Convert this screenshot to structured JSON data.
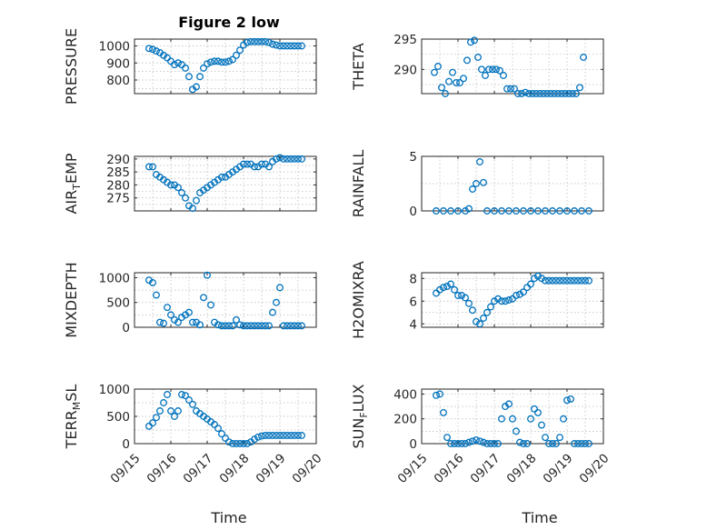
{
  "figure": {
    "title": "Figure 2 low",
    "xlabel": "Time",
    "marker_color": "#0072BD"
  },
  "chart_data": [
    {
      "type": "scatter",
      "ylabel": "PRESSURE",
      "xlim": [
        0,
        5
      ],
      "ylim": [
        720,
        1040
      ],
      "yticks": [
        800,
        900,
        1000
      ],
      "ytick_labels": [
        "800",
        "900",
        "1000"
      ],
      "xticks": [],
      "xtick_labels": [],
      "x": [
        0.4,
        0.5,
        0.6,
        0.7,
        0.8,
        0.9,
        1.0,
        1.1,
        1.2,
        1.3,
        1.4,
        1.5,
        1.6,
        1.7,
        1.8,
        1.9,
        2.0,
        2.1,
        2.2,
        2.3,
        2.4,
        2.5,
        2.6,
        2.7,
        2.8,
        2.9,
        3.0,
        3.1,
        3.2,
        3.3,
        3.4,
        3.5,
        3.6,
        3.7,
        3.8,
        3.9,
        4.0,
        4.1,
        4.2,
        4.3,
        4.4,
        4.5,
        4.6
      ],
      "y": [
        985,
        980,
        970,
        960,
        945,
        930,
        910,
        890,
        900,
        890,
        870,
        820,
        745,
        760,
        820,
        870,
        895,
        905,
        910,
        910,
        905,
        905,
        910,
        920,
        945,
        975,
        1005,
        1020,
        1025,
        1025,
        1025,
        1025,
        1025,
        1020,
        1010,
        1005,
        1000,
        1000,
        1000,
        1000,
        1000,
        1000,
        1000
      ]
    },
    {
      "type": "scatter",
      "ylabel": "THETA",
      "xlim": [
        0,
        5
      ],
      "ylim": [
        286,
        295
      ],
      "yticks": [
        290,
        295
      ],
      "ytick_labels": [
        "290",
        "295"
      ],
      "xticks": [],
      "xtick_labels": [],
      "x": [
        0.35,
        0.45,
        0.55,
        0.65,
        0.75,
        0.85,
        0.95,
        1.05,
        1.15,
        1.25,
        1.35,
        1.45,
        1.55,
        1.65,
        1.75,
        1.85,
        1.95,
        2.05,
        2.15,
        2.25,
        2.35,
        2.45,
        2.55,
        2.65,
        2.75,
        2.85,
        2.95,
        3.05,
        3.15,
        3.25,
        3.35,
        3.45,
        3.55,
        3.65,
        3.75,
        3.85,
        3.95,
        4.05,
        4.15,
        4.25,
        4.35,
        4.45
      ],
      "y": [
        289.5,
        290.5,
        287.0,
        286.0,
        288.0,
        289.5,
        287.8,
        287.8,
        288.5,
        291.5,
        294.5,
        294.8,
        292.0,
        290.0,
        289.0,
        290.0,
        290.0,
        290.0,
        289.8,
        289.0,
        286.8,
        286.8,
        286.8,
        286.0,
        286.0,
        286.2,
        286.0,
        286.0,
        286.0,
        286.0,
        286.0,
        286.0,
        286.0,
        286.0,
        286.0,
        286.0,
        286.0,
        286.0,
        286.0,
        286.0,
        287.0,
        292.0
      ]
    },
    {
      "type": "scatter",
      "ylabel": "AIR_TEMP",
      "xlim": [
        0,
        5
      ],
      "ylim": [
        270,
        291
      ],
      "yticks": [
        275,
        280,
        285,
        290
      ],
      "ytick_labels": [
        "275",
        "280",
        "285",
        "290"
      ],
      "xticks": [],
      "xtick_labels": [],
      "x": [
        0.4,
        0.5,
        0.6,
        0.7,
        0.8,
        0.9,
        1.0,
        1.1,
        1.2,
        1.3,
        1.4,
        1.5,
        1.6,
        1.7,
        1.8,
        1.9,
        2.0,
        2.1,
        2.2,
        2.3,
        2.4,
        2.5,
        2.6,
        2.7,
        2.8,
        2.9,
        3.0,
        3.1,
        3.2,
        3.3,
        3.4,
        3.5,
        3.6,
        3.7,
        3.8,
        3.9,
        4.0,
        4.1,
        4.2,
        4.3,
        4.4,
        4.5,
        4.6
      ],
      "y": [
        287,
        287,
        284,
        283,
        282,
        281,
        280,
        280,
        279,
        277,
        275,
        272,
        271,
        274,
        277,
        278,
        279,
        280,
        281,
        282,
        283,
        283,
        284,
        285,
        286,
        287,
        288,
        288,
        288,
        287,
        287,
        288,
        288,
        287,
        289,
        290,
        290.5,
        290,
        290,
        290,
        290,
        290,
        290
      ]
    },
    {
      "type": "scatter",
      "ylabel": "RAINFALL",
      "xlim": [
        0,
        5
      ],
      "ylim": [
        0,
        5
      ],
      "yticks": [
        0,
        5
      ],
      "ytick_labels": [
        "0",
        "5"
      ],
      "xticks": [],
      "xtick_labels": [],
      "x": [
        0.4,
        0.6,
        0.8,
        1.0,
        1.2,
        1.3,
        1.4,
        1.5,
        1.6,
        1.7,
        1.8,
        2.0,
        2.2,
        2.4,
        2.6,
        2.8,
        3.0,
        3.2,
        3.4,
        3.6,
        3.8,
        4.0,
        4.2,
        4.4,
        4.6
      ],
      "y": [
        0,
        0,
        0,
        0,
        0,
        0.2,
        2.0,
        2.5,
        4.5,
        2.6,
        0,
        0,
        0,
        0,
        0,
        0,
        0,
        0,
        0,
        0,
        0,
        0,
        0,
        0,
        0
      ]
    },
    {
      "type": "scatter",
      "ylabel": "MIXDEPTH",
      "xlim": [
        0,
        5
      ],
      "ylim": [
        0,
        1100
      ],
      "yticks": [
        0,
        500,
        1000
      ],
      "ytick_labels": [
        "0",
        "500",
        "1000"
      ],
      "xticks": [],
      "xtick_labels": [],
      "x": [
        0.4,
        0.5,
        0.6,
        0.7,
        0.8,
        0.9,
        1.0,
        1.1,
        1.2,
        1.3,
        1.4,
        1.5,
        1.6,
        1.7,
        1.8,
        1.9,
        2.0,
        2.1,
        2.2,
        2.3,
        2.4,
        2.5,
        2.6,
        2.7,
        2.8,
        2.9,
        3.0,
        3.1,
        3.2,
        3.3,
        3.4,
        3.5,
        3.6,
        3.7,
        3.8,
        3.9,
        4.0,
        4.1,
        4.2,
        4.3,
        4.4,
        4.5,
        4.6
      ],
      "y": [
        950,
        900,
        650,
        100,
        80,
        400,
        250,
        150,
        100,
        200,
        250,
        300,
        100,
        100,
        50,
        600,
        1050,
        450,
        100,
        50,
        30,
        30,
        30,
        30,
        150,
        50,
        30,
        30,
        30,
        30,
        30,
        30,
        30,
        30,
        300,
        500,
        800,
        30,
        30,
        30,
        30,
        30,
        30
      ]
    },
    {
      "type": "scatter",
      "ylabel": "H2OMIXRA",
      "xlim": [
        0,
        5
      ],
      "ylim": [
        3.7,
        8.5
      ],
      "yticks": [
        4,
        6,
        8
      ],
      "ytick_labels": [
        "4",
        "6",
        "8"
      ],
      "xticks": [],
      "xtick_labels": [],
      "x": [
        0.4,
        0.5,
        0.6,
        0.7,
        0.8,
        0.9,
        1.0,
        1.1,
        1.2,
        1.3,
        1.4,
        1.5,
        1.6,
        1.7,
        1.8,
        1.9,
        2.0,
        2.1,
        2.2,
        2.3,
        2.4,
        2.5,
        2.6,
        2.7,
        2.8,
        2.9,
        3.0,
        3.1,
        3.2,
        3.3,
        3.4,
        3.5,
        3.6,
        3.7,
        3.8,
        3.9,
        4.0,
        4.1,
        4.2,
        4.3,
        4.4,
        4.5,
        4.6
      ],
      "y": [
        6.7,
        7.0,
        7.2,
        7.3,
        7.5,
        7.0,
        6.5,
        6.5,
        6.3,
        5.8,
        5.2,
        4.2,
        4.0,
        4.5,
        5.0,
        5.5,
        6.0,
        6.2,
        6.0,
        6.0,
        6.1,
        6.2,
        6.5,
        6.6,
        6.8,
        7.2,
        7.5,
        8.0,
        8.2,
        8.0,
        7.8,
        7.8,
        7.8,
        7.8,
        7.8,
        7.8,
        7.8,
        7.8,
        7.8,
        7.8,
        7.8,
        7.8,
        7.8
      ]
    },
    {
      "type": "scatter",
      "ylabel": "TERR_MSL",
      "xlim": [
        0,
        5
      ],
      "ylim": [
        0,
        1000
      ],
      "yticks": [
        0,
        500,
        1000
      ],
      "ytick_labels": [
        "0",
        "500",
        "1000"
      ],
      "xticks": [
        0,
        1,
        2,
        3,
        4,
        5
      ],
      "xtick_labels": [
        "09/15",
        "09/16",
        "09/17",
        "09/18",
        "09/19",
        "09/20"
      ],
      "x": [
        0.4,
        0.5,
        0.6,
        0.7,
        0.8,
        0.9,
        1.0,
        1.1,
        1.2,
        1.3,
        1.4,
        1.5,
        1.6,
        1.7,
        1.8,
        1.9,
        2.0,
        2.1,
        2.2,
        2.3,
        2.4,
        2.5,
        2.6,
        2.7,
        2.8,
        2.9,
        3.0,
        3.1,
        3.2,
        3.3,
        3.4,
        3.5,
        3.6,
        3.7,
        3.8,
        3.9,
        4.0,
        4.1,
        4.2,
        4.3,
        4.4,
        4.5,
        4.6
      ],
      "y": [
        320,
        380,
        480,
        600,
        750,
        900,
        600,
        500,
        600,
        900,
        880,
        800,
        720,
        600,
        550,
        500,
        450,
        400,
        350,
        280,
        180,
        100,
        30,
        0,
        0,
        0,
        0,
        0,
        30,
        80,
        120,
        140,
        150,
        150,
        150,
        150,
        150,
        150,
        150,
        150,
        150,
        150,
        150
      ]
    },
    {
      "type": "scatter",
      "ylabel": "SUN_FLUX",
      "xlim": [
        0,
        5
      ],
      "ylim": [
        0,
        440
      ],
      "yticks": [
        0,
        200,
        400
      ],
      "ytick_labels": [
        "0",
        "200",
        "400"
      ],
      "xticks": [
        0,
        1,
        2,
        3,
        4,
        5
      ],
      "xtick_labels": [
        "09/15",
        "09/16",
        "09/17",
        "09/18",
        "09/19",
        "09/20"
      ],
      "x": [
        0.4,
        0.5,
        0.6,
        0.7,
        0.8,
        0.9,
        1.0,
        1.1,
        1.2,
        1.3,
        1.4,
        1.5,
        1.6,
        1.7,
        1.8,
        1.9,
        2.0,
        2.1,
        2.2,
        2.3,
        2.4,
        2.5,
        2.6,
        2.7,
        2.8,
        2.9,
        3.0,
        3.1,
        3.2,
        3.3,
        3.4,
        3.5,
        3.6,
        3.7,
        3.8,
        3.9,
        4.0,
        4.1,
        4.2,
        4.3,
        4.4,
        4.5,
        4.6
      ],
      "y": [
        390,
        400,
        250,
        50,
        0,
        0,
        0,
        0,
        0,
        10,
        20,
        30,
        20,
        10,
        0,
        0,
        0,
        0,
        200,
        300,
        320,
        200,
        100,
        10,
        0,
        0,
        200,
        280,
        250,
        150,
        50,
        0,
        0,
        0,
        50,
        200,
        350,
        360,
        0,
        0,
        0,
        0,
        0
      ]
    }
  ]
}
